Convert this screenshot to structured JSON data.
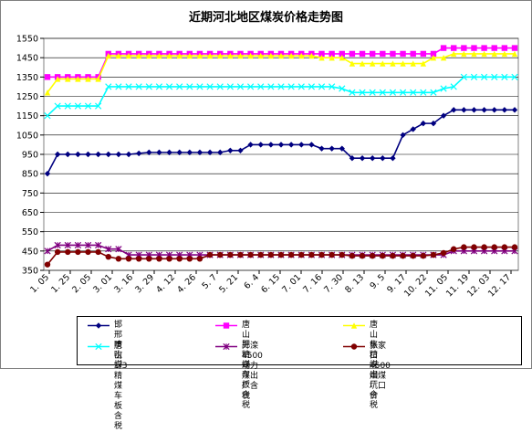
{
  "chart_data": {
    "type": "line",
    "title": "近期河北地区煤炭价格走势图",
    "ylim": [
      350,
      1550
    ],
    "yticks": [
      350,
      450,
      550,
      650,
      750,
      850,
      950,
      1050,
      1150,
      1250,
      1350,
      1450,
      1550
    ],
    "xticks": [
      "1. 05",
      "1. 25",
      "2. 05",
      "3. 01",
      "3. 16",
      "3. 29",
      "4. 12",
      "4. 26",
      "5. 7",
      "5. 21",
      "6. 4",
      "6. 15",
      "7. 01",
      "7. 16",
      "7. 30",
      "8. 13",
      "9. 5",
      "9. 17",
      "10. 22",
      "11. 05",
      "11. 19",
      "12. 03",
      "12. 17"
    ],
    "grid": true,
    "legend_position": "bottom",
    "series": [
      {
        "name": "邯邢喷吹煤",
        "color": "#000080",
        "marker": "diamond",
        "values": [
          850,
          950,
          950,
          950,
          950,
          950,
          950,
          950,
          950,
          955,
          960,
          960,
          960,
          960,
          960,
          960,
          960,
          960,
          970,
          970,
          1000,
          1000,
          1000,
          1000,
          1000,
          1000,
          1000,
          980,
          980,
          980,
          930,
          930,
          930,
          930,
          930,
          1050,
          1080,
          1110,
          1110,
          1150,
          1180,
          1180,
          1180,
          1180,
          1180,
          1180,
          1180
        ]
      },
      {
        "name": "唐山肥精煤\n车板含税",
        "color": "#ff00ff",
        "marker": "square",
        "values": [
          1350,
          1350,
          1350,
          1350,
          1350,
          1350,
          1470,
          1470,
          1470,
          1470,
          1470,
          1470,
          1470,
          1470,
          1470,
          1470,
          1470,
          1470,
          1470,
          1470,
          1470,
          1470,
          1470,
          1470,
          1470,
          1470,
          1470,
          1470,
          1470,
          1470,
          1470,
          1470,
          1470,
          1470,
          1470,
          1470,
          1470,
          1470,
          1470,
          1500,
          1500,
          1500,
          1500,
          1500,
          1500,
          1500,
          1500
        ]
      },
      {
        "name": "唐山焦精煤\n出厂含税",
        "color": "#ffff00",
        "marker": "triangle",
        "values": [
          1270,
          1340,
          1340,
          1340,
          1340,
          1340,
          1460,
          1460,
          1460,
          1460,
          1460,
          1460,
          1460,
          1460,
          1460,
          1460,
          1460,
          1460,
          1460,
          1460,
          1460,
          1460,
          1460,
          1460,
          1460,
          1460,
          1460,
          1450,
          1450,
          1450,
          1420,
          1420,
          1420,
          1420,
          1420,
          1420,
          1420,
          1420,
          1450,
          1450,
          1470,
          1470,
          1470,
          1470,
          1470,
          1470,
          1470
        ]
      },
      {
        "name": "唐山1/3精煤\n车板含税",
        "color": "#00ffff",
        "marker": "x",
        "values": [
          1150,
          1200,
          1200,
          1200,
          1200,
          1200,
          1300,
          1300,
          1300,
          1300,
          1300,
          1300,
          1300,
          1300,
          1300,
          1300,
          1300,
          1300,
          1300,
          1300,
          1300,
          1300,
          1300,
          1300,
          1300,
          1300,
          1300,
          1300,
          1300,
          1290,
          1270,
          1270,
          1270,
          1270,
          1270,
          1270,
          1270,
          1270,
          1270,
          1290,
          1300,
          1350,
          1350,
          1350,
          1350,
          1350,
          1350
        ]
      },
      {
        "name": "开滦4500动力煤出厂含税",
        "color": "#800080",
        "marker": "star",
        "values": [
          450,
          480,
          480,
          480,
          480,
          480,
          460,
          460,
          430,
          430,
          430,
          430,
          430,
          430,
          430,
          430,
          430,
          430,
          430,
          430,
          430,
          430,
          430,
          430,
          430,
          430,
          430,
          430,
          430,
          430,
          430,
          430,
          430,
          430,
          430,
          430,
          430,
          430,
          430,
          430,
          450,
          450,
          450,
          450,
          450,
          450,
          450
        ]
      },
      {
        "name": "张家口4500烟煤坑口价",
        "color": "#800000",
        "marker": "circle",
        "values": [
          380,
          445,
          445,
          445,
          445,
          445,
          420,
          410,
          410,
          410,
          410,
          410,
          410,
          410,
          410,
          410,
          430,
          430,
          430,
          430,
          430,
          430,
          430,
          430,
          430,
          430,
          430,
          430,
          430,
          430,
          425,
          425,
          425,
          425,
          425,
          425,
          425,
          425,
          430,
          440,
          460,
          470,
          470,
          470,
          470,
          470,
          470
        ]
      }
    ]
  }
}
